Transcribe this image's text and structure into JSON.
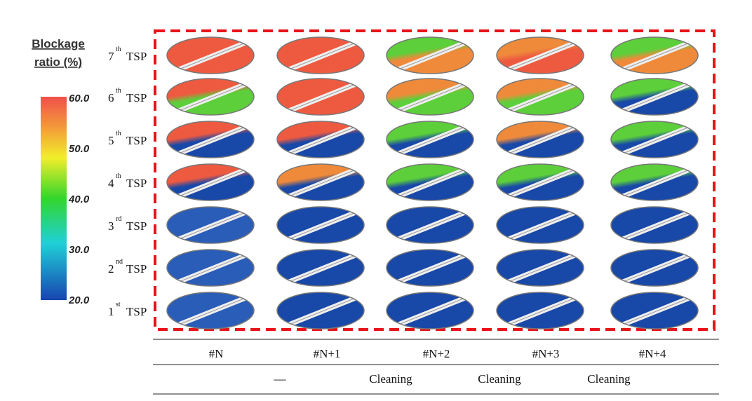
{
  "colorbar": {
    "title_line1": "Blockage",
    "title_line2": "ratio (%)",
    "ticks": [
      "60.0",
      "50.0",
      "40.0",
      "30.0",
      "20.0"
    ]
  },
  "rows": [
    {
      "number": "7",
      "suffix": "th",
      "label": "TSP"
    },
    {
      "number": "6",
      "suffix": "th",
      "label": "TSP"
    },
    {
      "number": "5",
      "suffix": "th",
      "label": "TSP"
    },
    {
      "number": "4",
      "suffix": "th",
      "label": "TSP"
    },
    {
      "number": "3",
      "suffix": "rd",
      "label": "TSP"
    },
    {
      "number": "2",
      "suffix": "nd",
      "label": "TSP"
    },
    {
      "number": "1",
      "suffix": "st",
      "label": "TSP"
    }
  ],
  "table": {
    "columns": [
      "#N",
      "#N+1",
      "#N+2",
      "#N+3",
      "#N+4"
    ],
    "actions": [
      "—",
      "Cleaning",
      "Cleaning",
      "Cleaning"
    ]
  }
}
